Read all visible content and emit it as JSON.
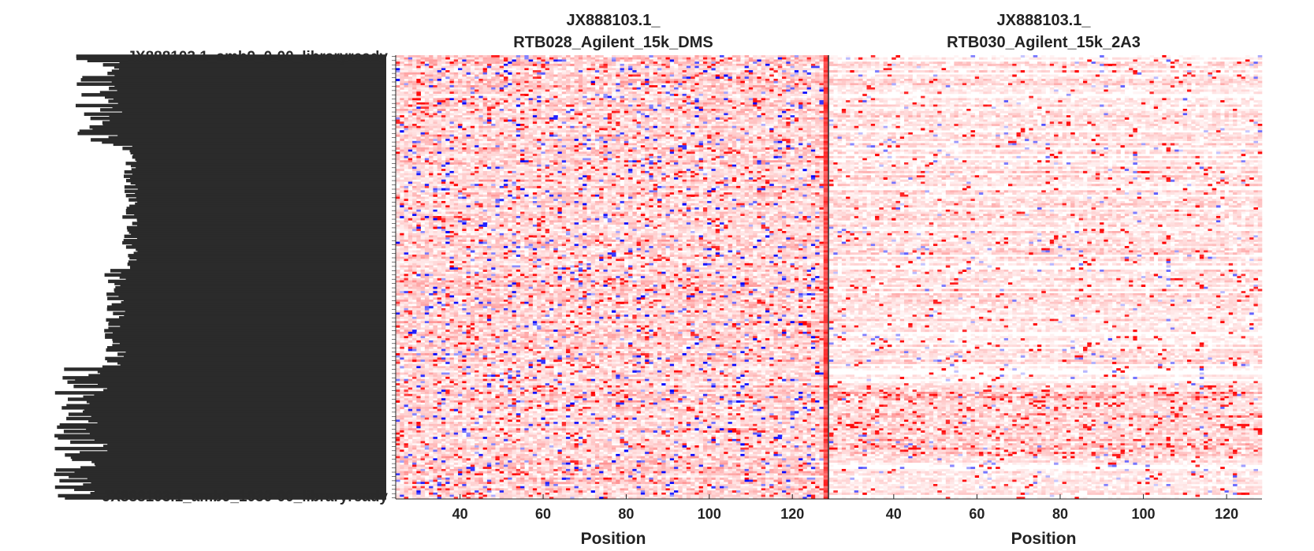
{
  "chart_data": [
    {
      "type": "heatmap",
      "title_lines": [
        "JX888103.1_",
        "RTB028_Agilent_15k_DMS"
      ],
      "xlabel": "Position",
      "xlim": [
        25,
        128
      ],
      "xticks": [
        40,
        60,
        80,
        100,
        120
      ],
      "rows": 207,
      "colormap": {
        "low": "#0000ff",
        "mid": "#ffffff",
        "high": "#ff0000"
      },
      "description_of_values": "per-position reactivity for each library variant; mostly light-to-strong red with scattered blue cells"
    },
    {
      "type": "heatmap",
      "title_lines": [
        "JX888103.1_",
        "RTB030_Agilent_15k_2A3"
      ],
      "xlabel": "Position",
      "xlim": [
        25,
        128
      ],
      "xticks": [
        40,
        60,
        80,
        100,
        120
      ],
      "rows": 207,
      "colormap": {
        "low": "#0000ff",
        "mid": "#ffffff",
        "high": "#ff0000"
      },
      "description_of_values": "per-position reactivity; predominantly white/pale red with horizontal red streaks, denser red band near bottom"
    }
  ],
  "row_labels": {
    "first": "JX888103.1_amb9_0-00_libraryready",
    "last": "JX888103.1_amb9_1030-00_libraryready"
  },
  "colors": {
    "axis": "#222222",
    "separator": "#000000"
  }
}
